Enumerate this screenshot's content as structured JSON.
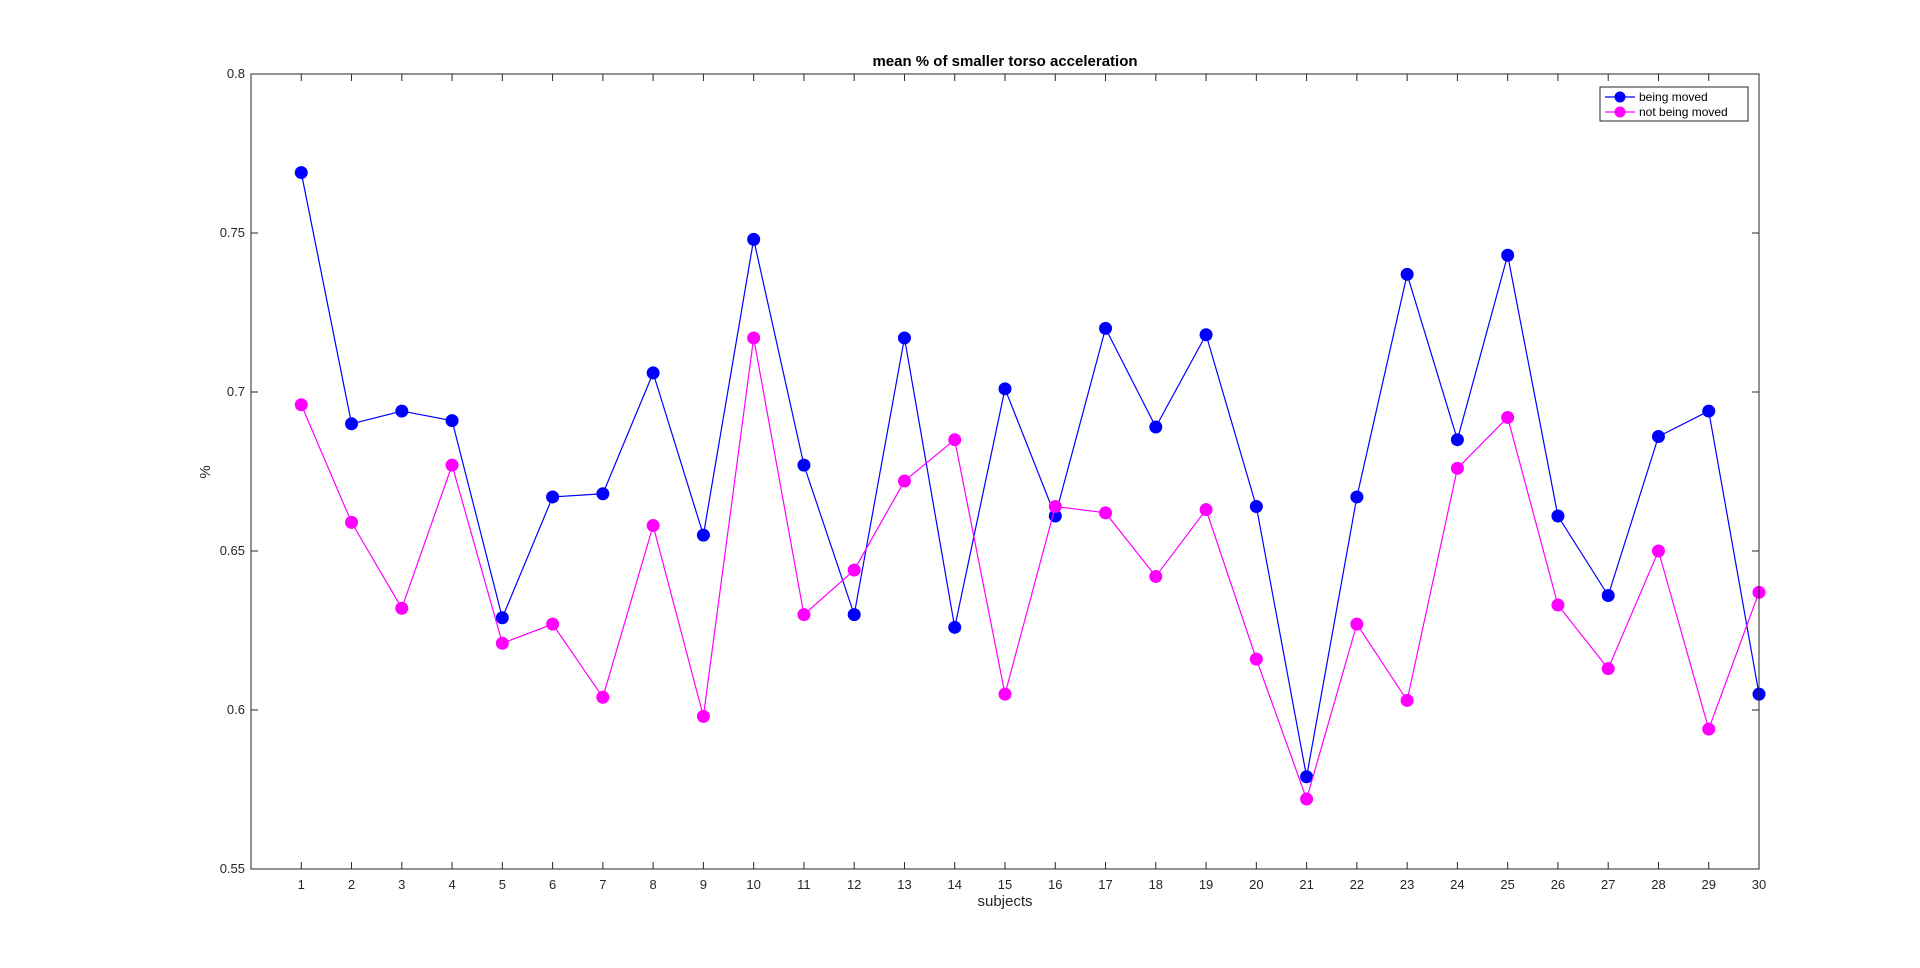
{
  "chart_data": {
    "type": "line",
    "title": "mean % of smaller torso acceleration",
    "xlabel": "subjects",
    "ylabel": "%",
    "x": [
      1,
      2,
      3,
      4,
      5,
      6,
      7,
      8,
      9,
      10,
      11,
      12,
      13,
      14,
      15,
      16,
      17,
      18,
      19,
      20,
      21,
      22,
      23,
      24,
      25,
      26,
      27,
      28,
      29,
      30
    ],
    "xlim": [
      0,
      30
    ],
    "ylim": [
      0.55,
      0.8
    ],
    "yticks": [
      0.55,
      0.6,
      0.65,
      0.7,
      0.75,
      0.8
    ],
    "ytick_labels": [
      "0.55",
      "0.6",
      "0.65",
      "0.7",
      "0.75",
      "0.8"
    ],
    "grid": false,
    "legend_position": "top-right",
    "series": [
      {
        "name": "being moved",
        "color": "#0000ff",
        "values": [
          0.769,
          0.69,
          0.694,
          0.691,
          0.629,
          0.667,
          0.668,
          0.706,
          0.655,
          0.748,
          0.677,
          0.63,
          0.717,
          0.626,
          0.701,
          0.661,
          0.72,
          0.689,
          0.718,
          0.664,
          0.579,
          0.667,
          0.737,
          0.685,
          0.743,
          0.661,
          0.636,
          0.686,
          0.694,
          0.605
        ]
      },
      {
        "name": "not being moved",
        "color": "#ff00ff",
        "values": [
          0.696,
          0.659,
          0.632,
          0.677,
          0.621,
          0.627,
          0.604,
          0.658,
          0.598,
          0.717,
          0.63,
          0.644,
          0.672,
          0.685,
          0.605,
          0.664,
          0.662,
          0.642,
          0.663,
          0.616,
          0.572,
          0.627,
          0.603,
          0.676,
          0.692,
          0.633,
          0.613,
          0.65,
          0.594,
          0.637
        ]
      }
    ]
  }
}
